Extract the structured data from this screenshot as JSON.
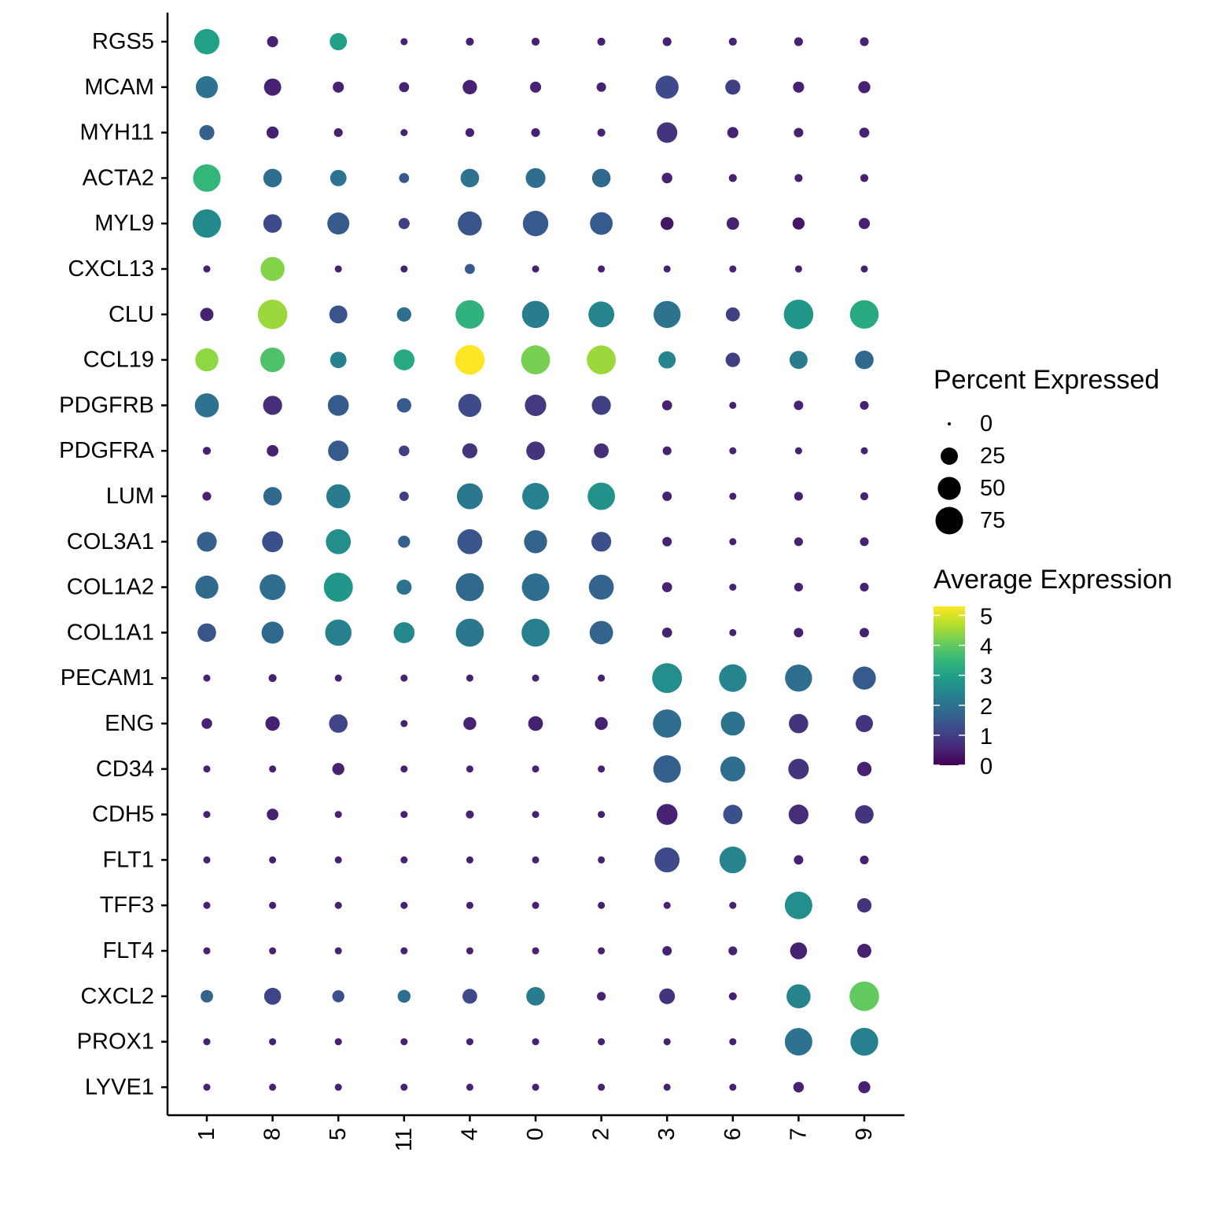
{
  "chart_data": {
    "type": "dotplot",
    "title": "",
    "xlabel": "",
    "ylabel": "",
    "clusters": [
      "1",
      "8",
      "5",
      "11",
      "4",
      "0",
      "2",
      "3",
      "6",
      "7",
      "9"
    ],
    "genes": [
      "RGS5",
      "MCAM",
      "MYH11",
      "ACTA2",
      "MYL9",
      "CXCL13",
      "CLU",
      "CCL19",
      "PDGFRB",
      "PDGFRA",
      "LUM",
      "COL3A1",
      "COL1A2",
      "COL1A1",
      "PECAM1",
      "ENG",
      "CD34",
      "CDH5",
      "FLT1",
      "TFF3",
      "FLT4",
      "CXCL2",
      "PROX1",
      "LYVE1"
    ],
    "percent_expressed": [
      [
        62,
        8,
        25,
        2,
        3,
        3,
        3,
        4,
        3,
        4,
        4
      ],
      [
        45,
        25,
        8,
        6,
        16,
        8,
        5,
        50,
        18,
        8,
        10
      ],
      [
        18,
        10,
        4,
        2,
        4,
        4,
        3,
        38,
        8,
        5,
        6
      ],
      [
        75,
        30,
        22,
        6,
        30,
        35,
        30,
        7,
        3,
        3,
        3
      ],
      [
        80,
        30,
        45,
        8,
        55,
        63,
        48,
        12,
        11,
        10,
        8
      ],
      [
        2,
        55,
        2,
        2,
        6,
        2,
        2,
        2,
        2,
        2,
        2
      ],
      [
        13,
        88,
        28,
        16,
        82,
        73,
        65,
        72,
        15,
        88,
        82
      ],
      [
        50,
        58,
        22,
        40,
        88,
        84,
        84,
        25,
        16,
        28,
        30
      ],
      [
        55,
        32,
        40,
        16,
        50,
        42,
        32,
        6,
        2,
        5,
        4
      ],
      [
        3,
        9,
        38,
        7,
        18,
        30,
        17,
        4,
        2,
        2,
        2
      ],
      [
        4,
        30,
        55,
        5,
        65,
        70,
        74,
        5,
        2,
        4,
        3
      ],
      [
        35,
        40,
        60,
        10,
        60,
        50,
        35,
        5,
        2,
        4,
        4
      ],
      [
        50,
        65,
        85,
        18,
        78,
        75,
        60,
        6,
        2,
        4,
        4
      ],
      [
        30,
        45,
        68,
        40,
        78,
        78,
        52,
        6,
        2,
        5,
        5
      ],
      [
        2,
        3,
        2,
        2,
        2,
        2,
        2,
        90,
        75,
        72,
        50
      ],
      [
        7,
        16,
        30,
        2,
        12,
        17,
        12,
        80,
        55,
        33,
        25
      ],
      [
        2,
        2,
        10,
        2,
        2,
        2,
        2,
        75,
        60,
        38,
        16
      ],
      [
        2,
        9,
        2,
        2,
        3,
        2,
        2,
        40,
        33,
        35,
        30
      ],
      [
        2,
        2,
        2,
        2,
        2,
        2,
        2,
        60,
        70,
        5,
        4
      ],
      [
        2,
        2,
        2,
        2,
        2,
        2,
        2,
        2,
        2,
        75,
        16
      ],
      [
        2,
        2,
        2,
        2,
        2,
        2,
        2,
        5,
        4,
        24,
        15
      ],
      [
        11,
        24,
        10,
        12,
        17,
        30,
        4,
        20,
        3,
        55,
        88
      ],
      [
        2,
        2,
        2,
        2,
        2,
        2,
        2,
        2,
        2,
        75,
        77
      ],
      [
        2,
        2,
        2,
        2,
        2,
        2,
        2,
        2,
        2,
        7,
        10
      ]
    ],
    "average_expression": [
      [
        3.0,
        0.5,
        3.0,
        0.5,
        0.5,
        0.5,
        0.5,
        0.5,
        0.5,
        0.5,
        0.5
      ],
      [
        2.0,
        0.5,
        0.5,
        0.5,
        0.5,
        0.5,
        0.5,
        1.2,
        1.0,
        0.5,
        0.5
      ],
      [
        1.6,
        0.5,
        0.5,
        0.5,
        0.5,
        0.5,
        0.5,
        0.8,
        0.5,
        0.5,
        0.5
      ],
      [
        3.5,
        1.9,
        2.0,
        1.5,
        2.0,
        1.9,
        1.8,
        0.5,
        0.5,
        0.5,
        0.5
      ],
      [
        2.5,
        1.2,
        1.5,
        1.0,
        1.4,
        1.5,
        1.5,
        0.3,
        0.5,
        0.3,
        0.5
      ],
      [
        0.5,
        4.3,
        0.5,
        0.5,
        1.5,
        0.5,
        0.5,
        0.5,
        0.5,
        0.5,
        0.5
      ],
      [
        0.5,
        4.5,
        1.4,
        1.9,
        3.4,
        2.2,
        2.4,
        2.0,
        1.0,
        2.8,
        3.2
      ],
      [
        4.4,
        3.8,
        2.3,
        3.2,
        5.3,
        4.2,
        4.5,
        2.4,
        1.0,
        2.2,
        1.8
      ],
      [
        2.0,
        0.7,
        1.5,
        1.5,
        1.2,
        0.9,
        1.0,
        0.5,
        0.5,
        0.5,
        0.5
      ],
      [
        0.5,
        0.5,
        1.5,
        1.0,
        0.8,
        0.8,
        0.7,
        0.5,
        0.5,
        0.5,
        0.5
      ],
      [
        0.5,
        1.8,
        2.2,
        1.0,
        2.1,
        2.3,
        2.7,
        0.5,
        0.5,
        0.5,
        0.5
      ],
      [
        1.6,
        1.3,
        2.6,
        1.6,
        1.4,
        1.7,
        1.3,
        0.5,
        0.5,
        0.5,
        0.5
      ],
      [
        1.8,
        1.9,
        2.8,
        2.0,
        1.8,
        1.9,
        1.7,
        0.5,
        0.5,
        0.5,
        0.5
      ],
      [
        1.4,
        1.8,
        2.3,
        2.5,
        2.1,
        2.3,
        1.7,
        0.5,
        0.5,
        0.5,
        0.5
      ],
      [
        0.5,
        0.5,
        0.5,
        0.5,
        0.5,
        0.5,
        0.5,
        2.6,
        2.4,
        1.9,
        1.5
      ],
      [
        0.5,
        0.5,
        1.1,
        0.5,
        0.5,
        0.5,
        0.5,
        1.9,
        2.0,
        0.8,
        0.8
      ],
      [
        0.5,
        0.5,
        0.5,
        0.5,
        0.5,
        0.5,
        0.5,
        1.6,
        1.9,
        0.8,
        0.5
      ],
      [
        0.5,
        0.5,
        0.5,
        0.5,
        0.5,
        0.5,
        0.5,
        0.5,
        1.3,
        0.7,
        0.8
      ],
      [
        0.5,
        0.5,
        0.5,
        0.5,
        0.5,
        0.5,
        0.5,
        1.2,
        2.4,
        0.5,
        0.5
      ],
      [
        0.5,
        0.5,
        0.5,
        0.5,
        0.5,
        0.5,
        0.5,
        0.5,
        0.5,
        2.6,
        0.8
      ],
      [
        0.5,
        0.5,
        0.5,
        0.5,
        0.5,
        0.5,
        0.5,
        0.5,
        0.5,
        0.5,
        0.5
      ],
      [
        1.7,
        1.1,
        1.3,
        1.9,
        1.2,
        2.2,
        0.5,
        0.8,
        0.5,
        2.4,
        4.0
      ],
      [
        0.5,
        0.5,
        0.5,
        0.5,
        0.5,
        0.5,
        0.5,
        0.5,
        0.5,
        2.0,
        2.3
      ],
      [
        0.5,
        0.5,
        0.5,
        0.5,
        0.5,
        0.5,
        0.5,
        0.5,
        0.5,
        0.5,
        0.5
      ]
    ],
    "size_legend": {
      "title": "Percent Expressed",
      "breaks": [
        0,
        25,
        50,
        75
      ]
    },
    "color_legend": {
      "title": "Average Expression",
      "breaks": [
        0,
        1,
        2,
        3,
        4,
        5
      ],
      "range": [
        0,
        5.3
      ],
      "colormap": "viridis",
      "colors": [
        "#440154",
        "#482878",
        "#3e4989",
        "#31688e",
        "#26828e",
        "#1f9e89",
        "#35b779",
        "#6ece58",
        "#b5de2b",
        "#fde725"
      ]
    },
    "grid": false
  }
}
